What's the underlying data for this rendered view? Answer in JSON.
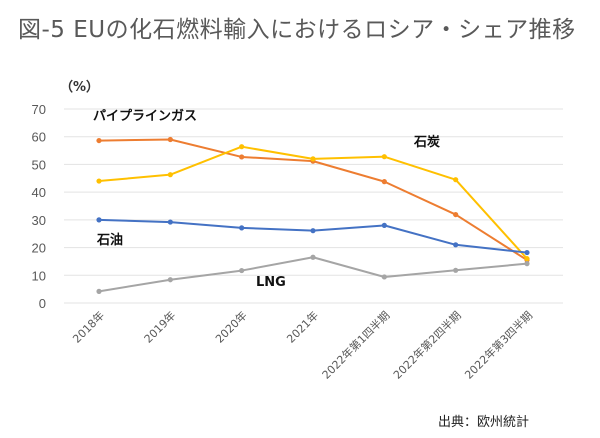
{
  "title": "図-5 EUの化石燃料輸入におけるロシア・シェア推移",
  "source": "出典：欧州統計",
  "chart_data": {
    "type": "line",
    "title": "図-5 EUの化石燃料輸入におけるロシア・シェア推移",
    "ylabel": "（%）",
    "xlabel": "",
    "ylim": [
      0,
      70
    ],
    "yticks": [
      0,
      10,
      20,
      30,
      40,
      50,
      60,
      70
    ],
    "grid": true,
    "categories": [
      "2018年",
      "2019年",
      "2020年",
      "2021年",
      "2022年第1四半期",
      "2022年第2四半期",
      "2022年第3四半期"
    ],
    "series": [
      {
        "name": "パイプラインガス",
        "color": "#ED7D31",
        "values": [
          58.6,
          59.0,
          52.7,
          51.2,
          43.8,
          31.9,
          15.5
        ]
      },
      {
        "name": "石炭",
        "color": "#FFC000",
        "values": [
          44.0,
          46.3,
          56.4,
          52.0,
          52.8,
          44.5,
          16.0
        ]
      },
      {
        "name": "石油",
        "color": "#4472C4",
        "values": [
          30.0,
          29.2,
          27.1,
          26.1,
          28.0,
          21.0,
          18.2
        ]
      },
      {
        "name": "LNG",
        "color": "#A5A5A5",
        "values": [
          4.2,
          8.4,
          11.7,
          16.5,
          9.4,
          11.8,
          14.2
        ]
      }
    ],
    "legend": "inline labels"
  }
}
